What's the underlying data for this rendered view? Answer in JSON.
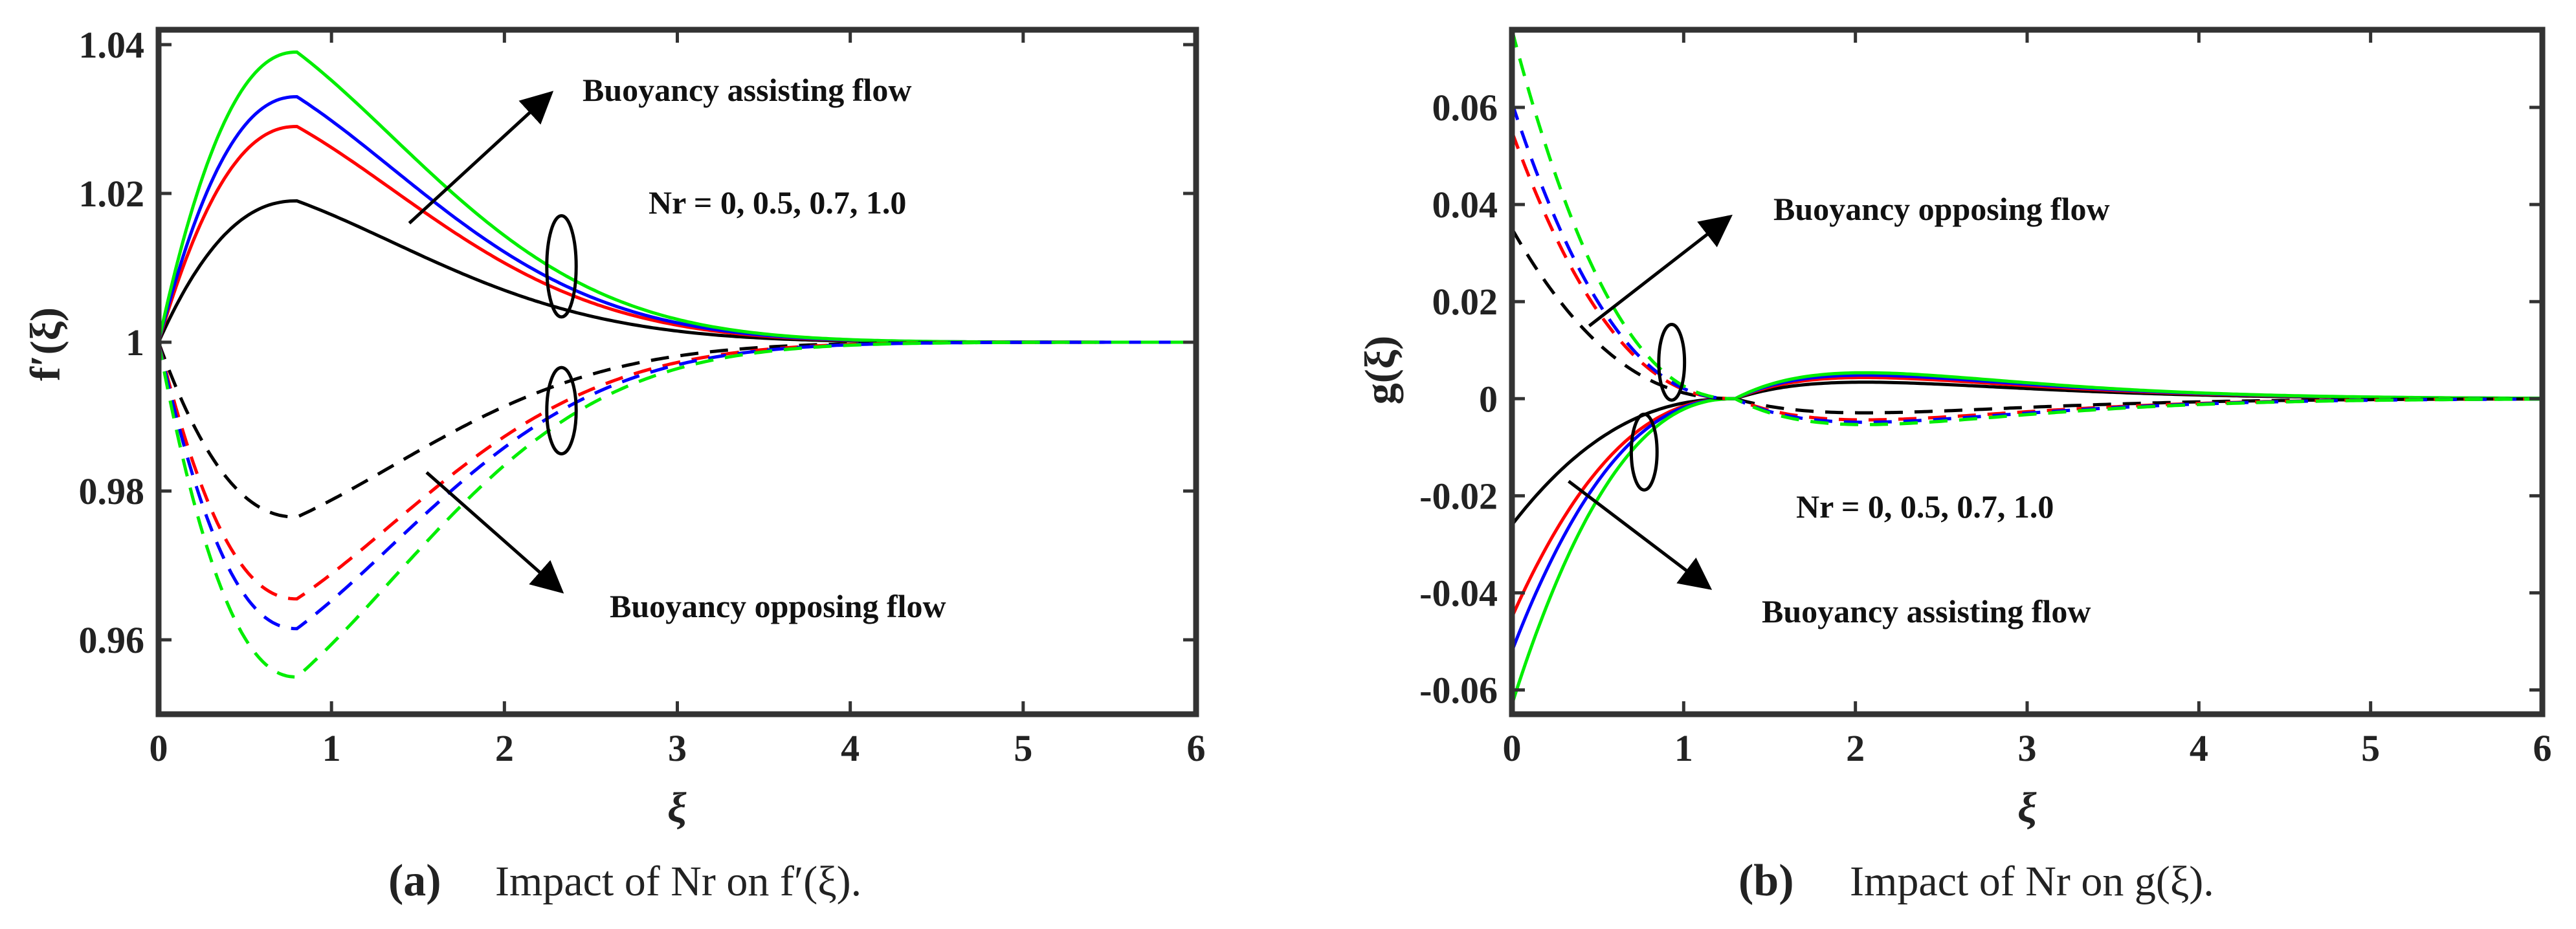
{
  "chart_data": [
    {
      "type": "line",
      "panel": "a",
      "caption_tag": "(a)",
      "caption": "Impact of Nr on f′(ξ).",
      "xlabel": "ξ",
      "ylabel": "f′(ξ)",
      "xlim": [
        0,
        6
      ],
      "ylim": [
        0.95,
        1.042
      ],
      "xticks": [
        "0",
        "1",
        "2",
        "3",
        "4",
        "5",
        "6"
      ],
      "yticks": [
        "0.96",
        "0.98",
        "1",
        "1.02",
        "1.04"
      ],
      "ytick_values": [
        0.96,
        0.98,
        1.0,
        1.02,
        1.04
      ],
      "annotations": {
        "assisting": "Buoyancy assisting flow",
        "opposing": "Buoyancy opposing flow",
        "nr": "Nr = 0, 0.5, 0.7, 1.0"
      },
      "series": [
        {
          "name": "Nr = 0 (assisting)",
          "color": "#000000",
          "style": "solid",
          "base": 1,
          "amp": 0.019,
          "peak": 0.8,
          "decay": 0.7
        },
        {
          "name": "Nr = 0.5 (assisting)",
          "color": "#ff0000",
          "style": "solid",
          "base": 1,
          "amp": 0.029,
          "peak": 0.8,
          "decay": 0.7
        },
        {
          "name": "Nr = 0.7 (assisting)",
          "color": "#0000ff",
          "style": "solid",
          "base": 1,
          "amp": 0.033,
          "peak": 0.8,
          "decay": 0.7
        },
        {
          "name": "Nr = 1.0 (assisting)",
          "color": "#00ee00",
          "style": "solid",
          "base": 1,
          "amp": 0.039,
          "peak": 0.8,
          "decay": 0.7
        },
        {
          "name": "Nr = 0 (opposing)",
          "color": "#000000",
          "style": "dashed",
          "base": 1,
          "amp": -0.0235,
          "peak": 0.8,
          "decay": 0.7
        },
        {
          "name": "Nr = 0.5 (opposing)",
          "color": "#ff0000",
          "style": "dashed",
          "base": 1,
          "amp": -0.0345,
          "peak": 0.8,
          "decay": 0.7
        },
        {
          "name": "Nr = 0.7 (opposing)",
          "color": "#0000ff",
          "style": "dashed",
          "base": 1,
          "amp": -0.0385,
          "peak": 0.8,
          "decay": 0.7
        },
        {
          "name": "Nr = 1.0 (opposing)",
          "color": "#00ee00",
          "style": "dashed",
          "base": 1,
          "amp": -0.045,
          "peak": 0.8,
          "decay": 0.7
        }
      ],
      "markers": {
        "ellipse_assisting": {
          "x": 2.33,
          "y": 1.0102,
          "rx": 0.085,
          "ry": 0.0068
        },
        "ellipse_opposing": {
          "x": 2.33,
          "y": 0.9908,
          "rx": 0.085,
          "ry": 0.0058
        },
        "arrow_assisting": {
          "from": [
            1.45,
            1.016
          ],
          "to": [
            2.27,
            1.0335
          ]
        },
        "arrow_opposing": {
          "from": [
            1.55,
            0.9825
          ],
          "to": [
            2.33,
            0.9665
          ]
        }
      }
    },
    {
      "type": "line",
      "panel": "b",
      "caption_tag": "(b)",
      "caption": "Impact of Nr on g(ξ).",
      "xlabel": "ξ",
      "ylabel": "g(ξ)",
      "xlim": [
        0,
        6
      ],
      "ylim": [
        -0.065,
        0.076
      ],
      "xticks": [
        "0",
        "1",
        "2",
        "3",
        "4",
        "5",
        "6"
      ],
      "yticks": [
        "-0.06",
        "-0.04",
        "-0.02",
        "0",
        "0.02",
        "0.04",
        "0.06"
      ],
      "ytick_values": [
        -0.06,
        -0.04,
        -0.02,
        0,
        0.02,
        0.04,
        0.06
      ],
      "annotations": {
        "opposing": "Buoyancy opposing flow",
        "assisting": "Buoyancy assisting flow",
        "nr": "Nr = 0, 0.5, 0.7, 1.0"
      },
      "series": [
        {
          "name": "Nr = 0 (assisting)",
          "color": "#000000",
          "style": "solid",
          "g0": -0.026,
          "bump": 0.0035
        },
        {
          "name": "Nr = 0.5 (assisting)",
          "color": "#ff0000",
          "style": "solid",
          "g0": -0.045,
          "bump": 0.0045
        },
        {
          "name": "Nr = 0.7 (assisting)",
          "color": "#0000ff",
          "style": "solid",
          "g0": -0.052,
          "bump": 0.005
        },
        {
          "name": "Nr = 1.0 (assisting)",
          "color": "#00ee00",
          "style": "solid",
          "g0": -0.063,
          "bump": 0.0055
        },
        {
          "name": "Nr = 0 (opposing)",
          "color": "#000000",
          "style": "dashed",
          "g0": 0.035,
          "bump": -0.003
        },
        {
          "name": "Nr = 0.5 (opposing)",
          "color": "#ff0000",
          "style": "dashed",
          "g0": 0.055,
          "bump": -0.0045
        },
        {
          "name": "Nr = 0.7 (opposing)",
          "color": "#0000ff",
          "style": "dashed",
          "g0": 0.061,
          "bump": -0.005
        },
        {
          "name": "Nr = 1.0 (opposing)",
          "color": "#00ee00",
          "style": "dashed",
          "g0": 0.076,
          "bump": -0.0055
        }
      ],
      "markers": {
        "ellipse_opposing": {
          "x": 0.93,
          "y": 0.0075,
          "rx": 0.075,
          "ry": 0.0078
        },
        "ellipse_assisting": {
          "x": 0.77,
          "y": -0.011,
          "rx": 0.075,
          "ry": 0.0078
        },
        "arrow_opposing": {
          "from": [
            0.45,
            0.015
          ],
          "to": [
            1.27,
            0.0375
          ]
        },
        "arrow_assisting": {
          "from": [
            0.33,
            -0.017
          ],
          "to": [
            1.15,
            -0.039
          ]
        }
      }
    }
  ]
}
